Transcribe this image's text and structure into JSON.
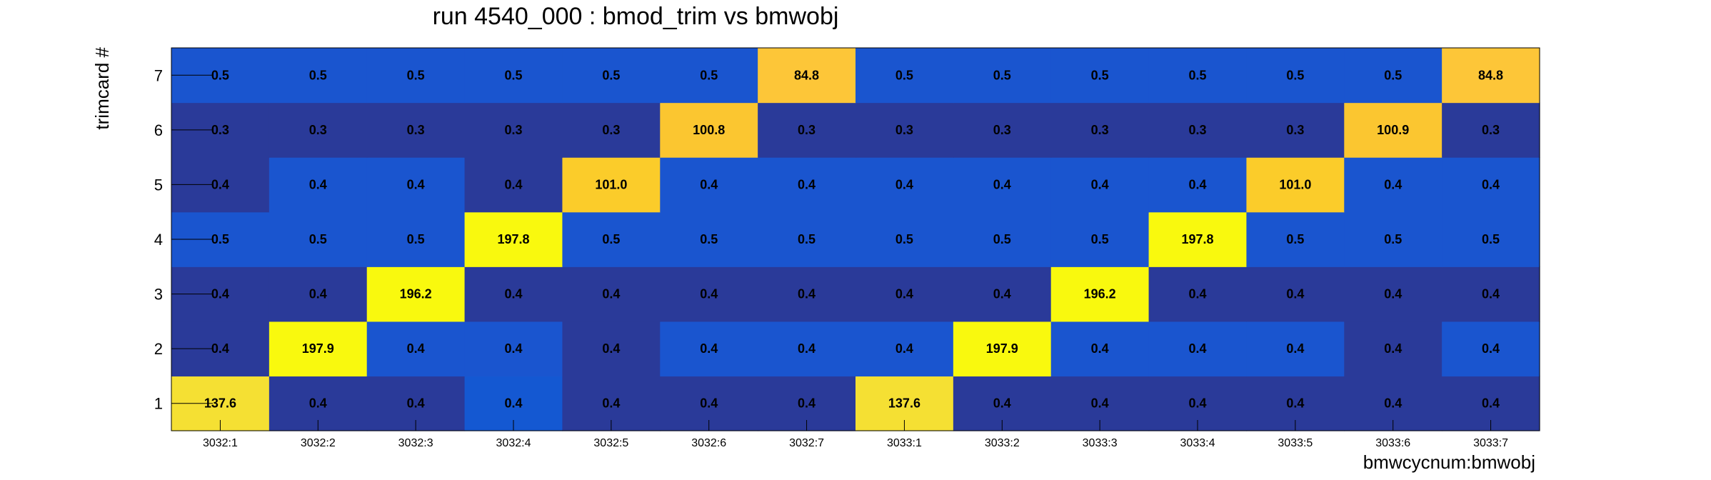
{
  "chart_data": {
    "type": "heatmap",
    "title": "run 4540_000 : bmod_trim vs bmwobj",
    "xlabel": "bmwcycnum:bmwobj",
    "ylabel": "trimcard #",
    "x_categories": [
      "3032:1",
      "3032:2",
      "3032:3",
      "3032:4",
      "3032:5",
      "3032:6",
      "3032:7",
      "3033:1",
      "3033:2",
      "3033:3",
      "3033:4",
      "3033:5",
      "3033:6",
      "3033:7"
    ],
    "y_categories": [
      "1",
      "2",
      "3",
      "4",
      "5",
      "6",
      "7"
    ],
    "values": [
      [
        "137.6",
        "0.4",
        "0.4",
        "0.4",
        "0.4",
        "0.4",
        "0.4",
        "137.6",
        "0.4",
        "0.4",
        "0.4",
        "0.4",
        "0.4",
        "0.4"
      ],
      [
        "0.4",
        "197.9",
        "0.4",
        "0.4",
        "0.4",
        "0.4",
        "0.4",
        "0.4",
        "197.9",
        "0.4",
        "0.4",
        "0.4",
        "0.4",
        "0.4"
      ],
      [
        "0.4",
        "0.4",
        "196.2",
        "0.4",
        "0.4",
        "0.4",
        "0.4",
        "0.4",
        "0.4",
        "196.2",
        "0.4",
        "0.4",
        "0.4",
        "0.4"
      ],
      [
        "0.5",
        "0.5",
        "0.5",
        "197.8",
        "0.5",
        "0.5",
        "0.5",
        "0.5",
        "0.5",
        "0.5",
        "197.8",
        "0.5",
        "0.5",
        "0.5"
      ],
      [
        "0.4",
        "0.4",
        "0.4",
        "0.4",
        "101.0",
        "0.4",
        "0.4",
        "0.4",
        "0.4",
        "0.4",
        "0.4",
        "101.0",
        "0.4",
        "0.4"
      ],
      [
        "0.3",
        "0.3",
        "0.3",
        "0.3",
        "0.3",
        "100.8",
        "0.3",
        "0.3",
        "0.3",
        "0.3",
        "0.3",
        "0.3",
        "100.9",
        "0.3"
      ],
      [
        "0.5",
        "0.5",
        "0.5",
        "0.5",
        "0.5",
        "0.5",
        "84.8",
        "0.5",
        "0.5",
        "0.5",
        "0.5",
        "0.5",
        "0.5",
        "84.8"
      ]
    ],
    "cell_colors": [
      [
        "#f5e033",
        "#2a3a99",
        "#2a3a99",
        "#1458d2",
        "#2a3a99",
        "#2a3a99",
        "#2a3a99",
        "#f5e033",
        "#2a3a99",
        "#2a3a99",
        "#2a3a99",
        "#2a3a99",
        "#2a3a99",
        "#2a3a99"
      ],
      [
        "#2a3a99",
        "#f9f90e",
        "#1a55cf",
        "#1a55cf",
        "#2a3a99",
        "#1a55cf",
        "#1a55cf",
        "#1a55cf",
        "#f9f90e",
        "#1a55cf",
        "#1a55cf",
        "#1a55cf",
        "#2a3a99",
        "#1a55cf"
      ],
      [
        "#2a3a99",
        "#2a3a99",
        "#f9f90e",
        "#2a3a99",
        "#2a3a99",
        "#2a3a99",
        "#2a3a99",
        "#2a3a99",
        "#2a3a99",
        "#f9f90e",
        "#2a3a99",
        "#2a3a99",
        "#2a3a99",
        "#2a3a99"
      ],
      [
        "#1a55cf",
        "#1a55cf",
        "#1a55cf",
        "#f9f90e",
        "#1a55cf",
        "#1a55cf",
        "#1a55cf",
        "#1a55cf",
        "#1a55cf",
        "#1a55cf",
        "#f9f90e",
        "#1a55cf",
        "#1a55cf",
        "#1a55cf"
      ],
      [
        "#2a3a99",
        "#1a55cf",
        "#1a55cf",
        "#2a3a99",
        "#fbcc2a",
        "#1a55cf",
        "#1a55cf",
        "#1a55cf",
        "#1a55cf",
        "#1a55cf",
        "#1a55cf",
        "#fbcc2a",
        "#1a55cf",
        "#1a55cf"
      ],
      [
        "#2a3a99",
        "#2a3a99",
        "#2a3a99",
        "#2a3a99",
        "#2a3a99",
        "#fbc630",
        "#2a3a99",
        "#2a3a99",
        "#2a3a99",
        "#2a3a99",
        "#2a3a99",
        "#2a3a99",
        "#fbc630",
        "#2a3a99"
      ],
      [
        "#1a55cf",
        "#1a55cf",
        "#1a55cf",
        "#1a55cf",
        "#1a55cf",
        "#1a55cf",
        "#fdc638",
        "#1a55cf",
        "#1a55cf",
        "#1a55cf",
        "#1a55cf",
        "#1a55cf",
        "#1a55cf",
        "#fdc638"
      ]
    ],
    "grid": false,
    "legend": "none"
  }
}
